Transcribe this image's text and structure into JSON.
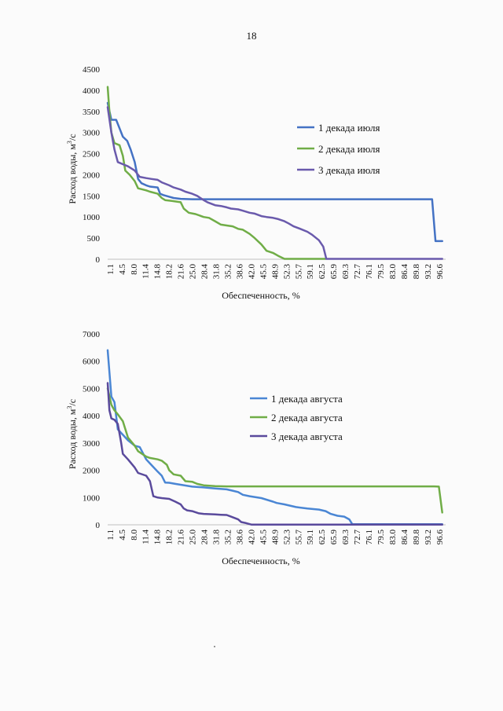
{
  "page": {
    "number": "18"
  },
  "chart_data": [
    {
      "type": "line",
      "xlabel": "Обеспеченность, %",
      "ylabel_main": "Расход воды, м",
      "ylabel_sup": "3",
      "ylabel_end": "/с",
      "ylim": [
        0,
        4500
      ],
      "yticks": [
        "0",
        "500",
        "1000",
        "1500",
        "2000",
        "2500",
        "3000",
        "3500",
        "4000",
        "4500"
      ],
      "x_tick_labels": [
        "1.1",
        "4.5",
        "8.0",
        "11.4",
        "14.8",
        "18.2",
        "21.6",
        "25.0",
        "28.4",
        "31.8",
        "35.2",
        "38.6",
        "42.0",
        "45.5",
        "48.9",
        "52.3",
        "55.7",
        "59.1",
        "62.5",
        "65.9",
        "69.3",
        "72.7",
        "76.1",
        "79.5",
        "83.0",
        "86.4",
        "89.8",
        "93.2",
        "96.6"
      ],
      "xlim": [
        0,
        100
      ],
      "legend_position": "right",
      "grid": false,
      "series": [
        {
          "name": "1 декада июля",
          "color": "#4472c4",
          "points": [
            [
              0,
              3700
            ],
            [
              1.1,
              3300
            ],
            [
              2.5,
              3300
            ],
            [
              3.5,
              3100
            ],
            [
              4.5,
              2900
            ],
            [
              5.8,
              2800
            ],
            [
              6.8,
              2600
            ],
            [
              8.0,
              2300
            ],
            [
              9.0,
              1900
            ],
            [
              10.0,
              1800
            ],
            [
              11.4,
              1750
            ],
            [
              12.5,
              1720
            ],
            [
              14.8,
              1700
            ],
            [
              15.5,
              1550
            ],
            [
              16.5,
              1520
            ],
            [
              18.2,
              1480
            ],
            [
              19.5,
              1450
            ],
            [
              21.6,
              1430
            ],
            [
              25.0,
              1420
            ],
            [
              60,
              1420
            ],
            [
              96.0,
              1420
            ],
            [
              97.0,
              430
            ],
            [
              99.0,
              430
            ]
          ]
        },
        {
          "name": "2 декада июля",
          "color": "#70ad47",
          "points": [
            [
              0,
              4080
            ],
            [
              0.5,
              3500
            ],
            [
              1.1,
              3000
            ],
            [
              2.0,
              2750
            ],
            [
              3.5,
              2700
            ],
            [
              4.5,
              2450
            ],
            [
              5.2,
              2100
            ],
            [
              6.5,
              2000
            ],
            [
              8.0,
              1850
            ],
            [
              9.0,
              1680
            ],
            [
              11.4,
              1630
            ],
            [
              12.5,
              1600
            ],
            [
              14.8,
              1550
            ],
            [
              16.0,
              1450
            ],
            [
              17.0,
              1400
            ],
            [
              19.0,
              1380
            ],
            [
              21.6,
              1350
            ],
            [
              22.5,
              1200
            ],
            [
              24.0,
              1100
            ],
            [
              26.0,
              1070
            ],
            [
              28.4,
              1000
            ],
            [
              30.0,
              980
            ],
            [
              31.8,
              900
            ],
            [
              33.5,
              820
            ],
            [
              35.2,
              800
            ],
            [
              37.0,
              780
            ],
            [
              38.6,
              720
            ],
            [
              40.0,
              700
            ],
            [
              42.0,
              600
            ],
            [
              43.5,
              500
            ],
            [
              45.5,
              350
            ],
            [
              47.0,
              200
            ],
            [
              48.9,
              150
            ],
            [
              50.5,
              80
            ],
            [
              52.3,
              10
            ],
            [
              60.0,
              10
            ],
            [
              64.5,
              10
            ]
          ]
        },
        {
          "name": "3 декада июля",
          "color": "#6a5aac",
          "points": [
            [
              0,
              3600
            ],
            [
              1.1,
              3000
            ],
            [
              2.0,
              2600
            ],
            [
              3.0,
              2300
            ],
            [
              4.5,
              2250
            ],
            [
              6.0,
              2200
            ],
            [
              8.0,
              2100
            ],
            [
              9.5,
              1950
            ],
            [
              11.4,
              1920
            ],
            [
              13.0,
              1900
            ],
            [
              14.8,
              1880
            ],
            [
              16.0,
              1820
            ],
            [
              18.2,
              1750
            ],
            [
              19.5,
              1700
            ],
            [
              21.6,
              1650
            ],
            [
              23.0,
              1600
            ],
            [
              25.0,
              1550
            ],
            [
              26.5,
              1500
            ],
            [
              28.4,
              1400
            ],
            [
              29.5,
              1350
            ],
            [
              31.8,
              1280
            ],
            [
              33.5,
              1260
            ],
            [
              35.2,
              1230
            ],
            [
              36.5,
              1200
            ],
            [
              38.6,
              1180
            ],
            [
              40.0,
              1150
            ],
            [
              42.0,
              1100
            ],
            [
              43.5,
              1080
            ],
            [
              45.5,
              1020
            ],
            [
              47.0,
              1000
            ],
            [
              48.9,
              980
            ],
            [
              50.5,
              950
            ],
            [
              52.3,
              900
            ],
            [
              53.5,
              850
            ],
            [
              55.0,
              780
            ],
            [
              57.0,
              720
            ],
            [
              59.1,
              650
            ],
            [
              60.5,
              580
            ],
            [
              62.5,
              450
            ],
            [
              63.8,
              300
            ],
            [
              64.7,
              10
            ],
            [
              75,
              10
            ],
            [
              99.0,
              10
            ]
          ]
        }
      ]
    },
    {
      "type": "line",
      "xlabel": "Обеспеченность, %",
      "ylabel_main": "Расход воды, м",
      "ylabel_sup": "3",
      "ylabel_end": "/с",
      "ylim": [
        0,
        7000
      ],
      "yticks": [
        "0",
        "1000",
        "2000",
        "3000",
        "4000",
        "5000",
        "6000",
        "7000"
      ],
      "x_tick_labels": [
        "1.1",
        "4.5",
        "8.0",
        "11.4",
        "14.8",
        "18.2",
        "21.6",
        "25.0",
        "28.4",
        "31.8",
        "35.2",
        "38.6",
        "42.0",
        "45.5",
        "48.9",
        "52.3",
        "55.7",
        "59.1",
        "62.5",
        "65.9",
        "69.3",
        "72.7",
        "76.1",
        "79.5",
        "83.0",
        "86.4",
        "89.8",
        "93.2",
        "96.6"
      ],
      "xlim": [
        0,
        100
      ],
      "legend_position": "right",
      "grid": false,
      "series": [
        {
          "name": "1 декада августа",
          "color": "#4a86d4",
          "points": [
            [
              0,
              6400
            ],
            [
              1.1,
              4700
            ],
            [
              2.0,
              4500
            ],
            [
              3.0,
              3500
            ],
            [
              4.5,
              3300
            ],
            [
              6.0,
              3100
            ],
            [
              8.0,
              2900
            ],
            [
              9.5,
              2850
            ],
            [
              11.4,
              2400
            ],
            [
              12.5,
              2250
            ],
            [
              14.8,
              1950
            ],
            [
              16.0,
              1800
            ],
            [
              17.0,
              1550
            ],
            [
              18.2,
              1540
            ],
            [
              20.0,
              1500
            ],
            [
              21.6,
              1470
            ],
            [
              25.0,
              1400
            ],
            [
              28.4,
              1370
            ],
            [
              31.8,
              1330
            ],
            [
              35.2,
              1300
            ],
            [
              37.0,
              1250
            ],
            [
              38.6,
              1200
            ],
            [
              40.0,
              1100
            ],
            [
              42.0,
              1050
            ],
            [
              45.5,
              980
            ],
            [
              48.9,
              850
            ],
            [
              50.0,
              800
            ],
            [
              52.3,
              750
            ],
            [
              55.7,
              650
            ],
            [
              59.1,
              600
            ],
            [
              62.5,
              560
            ],
            [
              64.5,
              500
            ],
            [
              66.0,
              400
            ],
            [
              68.0,
              330
            ],
            [
              70.0,
              300
            ],
            [
              71.5,
              200
            ],
            [
              72.4,
              20
            ],
            [
              80.0,
              20
            ],
            [
              99.0,
              20
            ]
          ]
        },
        {
          "name": "2 декада августа",
          "color": "#70ad47",
          "points": [
            [
              0,
              5000
            ],
            [
              1.1,
              4400
            ],
            [
              2.0,
              4200
            ],
            [
              3.0,
              4050
            ],
            [
              4.5,
              3800
            ],
            [
              6.0,
              3200
            ],
            [
              8.0,
              2900
            ],
            [
              9.0,
              2700
            ],
            [
              11.4,
              2500
            ],
            [
              12.5,
              2450
            ],
            [
              14.8,
              2400
            ],
            [
              16.0,
              2350
            ],
            [
              17.5,
              2200
            ],
            [
              18.2,
              2000
            ],
            [
              19.5,
              1850
            ],
            [
              21.6,
              1800
            ],
            [
              23.0,
              1600
            ],
            [
              25.0,
              1580
            ],
            [
              26.5,
              1500
            ],
            [
              28.4,
              1450
            ],
            [
              31.8,
              1420
            ],
            [
              35.2,
              1410
            ],
            [
              60.0,
              1410
            ],
            [
              96.6,
              1410
            ],
            [
              98.0,
              1400
            ],
            [
              99.0,
              450
            ]
          ]
        },
        {
          "name": "3 декада августа",
          "color": "#5a4a9c",
          "points": [
            [
              0,
              5200
            ],
            [
              0.5,
              4200
            ],
            [
              1.1,
              3900
            ],
            [
              2.0,
              3850
            ],
            [
              3.0,
              3700
            ],
            [
              4.0,
              3000
            ],
            [
              4.5,
              2600
            ],
            [
              6.0,
              2400
            ],
            [
              8.0,
              2100
            ],
            [
              9.0,
              1900
            ],
            [
              11.4,
              1800
            ],
            [
              12.5,
              1600
            ],
            [
              13.5,
              1050
            ],
            [
              14.8,
              1000
            ],
            [
              16.0,
              980
            ],
            [
              18.2,
              950
            ],
            [
              20.0,
              850
            ],
            [
              21.6,
              750
            ],
            [
              22.5,
              600
            ],
            [
              23.5,
              530
            ],
            [
              25.0,
              500
            ],
            [
              27.0,
              420
            ],
            [
              28.4,
              400
            ],
            [
              31.8,
              380
            ],
            [
              33.5,
              370
            ],
            [
              35.2,
              360
            ],
            [
              36.5,
              300
            ],
            [
              38.6,
              200
            ],
            [
              39.5,
              100
            ],
            [
              41.0,
              60
            ],
            [
              42.5,
              10
            ],
            [
              60.0,
              10
            ],
            [
              99.0,
              10
            ]
          ]
        }
      ]
    }
  ]
}
